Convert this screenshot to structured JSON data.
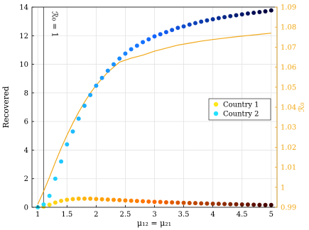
{
  "chart_data": {
    "type": "scatter",
    "xlabel": "μ₁₂ = μ₂₁",
    "ylabel": "Recovered",
    "y2label": "ℛ₀",
    "xlim": [
      0.9,
      5.1
    ],
    "ylim": [
      0,
      14
    ],
    "y2lim": [
      0.99,
      1.09
    ],
    "xticks": [
      "1",
      "1.5",
      "2",
      "2.5",
      "3",
      "3.5",
      "4",
      "4.5",
      "5"
    ],
    "yticks": [
      "0",
      "2",
      "4",
      "6",
      "8",
      "10",
      "12",
      "14"
    ],
    "y2ticks": [
      "0.99",
      "1",
      "1.01",
      "1.02",
      "1.03",
      "1.04",
      "1.05",
      "1.06",
      "1.07",
      "1.08",
      "1.09"
    ],
    "grid": true,
    "legend_position": "center-right",
    "annotation": {
      "x": 1.1,
      "label": "ℛ₀ = 1"
    },
    "series": [
      {
        "name": "Country 1",
        "legend_color": "#ffe619",
        "color_start": "#ffe619",
        "color_mid": "#ff6a00",
        "color_end": "#400000",
        "x": [
          1.0,
          1.1,
          1.2,
          1.3,
          1.4,
          1.5,
          1.6,
          1.7,
          1.8,
          1.9,
          2.0,
          2.1,
          2.2,
          2.3,
          2.4,
          2.5,
          2.6,
          2.7,
          2.8,
          2.9,
          3.0,
          3.1,
          3.2,
          3.3,
          3.4,
          3.5,
          3.6,
          3.7,
          3.8,
          3.9,
          4.0,
          4.1,
          4.2,
          4.3,
          4.4,
          4.5,
          4.6,
          4.7,
          4.8,
          4.9,
          5.0
        ],
        "y": [
          0.0,
          0.05,
          0.18,
          0.33,
          0.45,
          0.53,
          0.57,
          0.6,
          0.6,
          0.6,
          0.58,
          0.56,
          0.54,
          0.52,
          0.5,
          0.48,
          0.46,
          0.44,
          0.42,
          0.4,
          0.38,
          0.37,
          0.35,
          0.34,
          0.32,
          0.31,
          0.3,
          0.29,
          0.27,
          0.26,
          0.25,
          0.24,
          0.23,
          0.22,
          0.21,
          0.2,
          0.19,
          0.18,
          0.17,
          0.16,
          0.16
        ]
      },
      {
        "name": "Country 2",
        "legend_color": "#22e0ff",
        "color_start": "#22e0ff",
        "color_mid": "#1565ff",
        "color_end": "#000038",
        "x": [
          1.0,
          1.1,
          1.2,
          1.3,
          1.4,
          1.5,
          1.6,
          1.7,
          1.8,
          1.9,
          2.0,
          2.1,
          2.2,
          2.3,
          2.4,
          2.5,
          2.6,
          2.7,
          2.8,
          2.9,
          3.0,
          3.1,
          3.2,
          3.3,
          3.4,
          3.5,
          3.6,
          3.7,
          3.8,
          3.9,
          4.0,
          4.1,
          4.2,
          4.3,
          4.4,
          4.5,
          4.6,
          4.7,
          4.8,
          4.9,
          5.0
        ],
        "y": [
          0.0,
          0.2,
          0.8,
          2.0,
          3.2,
          4.4,
          5.3,
          6.2,
          7.1,
          7.85,
          8.5,
          9.05,
          9.55,
          10.0,
          10.4,
          10.75,
          11.05,
          11.3,
          11.55,
          11.75,
          11.95,
          12.1,
          12.25,
          12.4,
          12.55,
          12.65,
          12.78,
          12.88,
          12.98,
          13.07,
          13.15,
          13.23,
          13.3,
          13.37,
          13.43,
          13.49,
          13.55,
          13.6,
          13.65,
          13.7,
          13.77
        ]
      }
    ],
    "r0_curve": {
      "axis": "right",
      "color": "#f0a818",
      "x": [
        1.0,
        1.1,
        1.2,
        1.3,
        1.4,
        1.5,
        1.6,
        1.7,
        1.8,
        1.9,
        2.0,
        2.2,
        2.4,
        2.6,
        2.8,
        3.0,
        3.2,
        3.4,
        3.6,
        3.8,
        4.0,
        4.2,
        4.4,
        4.6,
        4.8,
        5.0
      ],
      "y": [
        0.9915,
        0.998,
        1.005,
        1.0125,
        1.0195,
        1.026,
        1.032,
        1.0375,
        1.0425,
        1.047,
        1.051,
        1.0575,
        1.0625,
        1.0645,
        1.066,
        1.068,
        1.0695,
        1.071,
        1.072,
        1.073,
        1.0738,
        1.0745,
        1.0752,
        1.0758,
        1.0764,
        1.077
      ]
    }
  }
}
